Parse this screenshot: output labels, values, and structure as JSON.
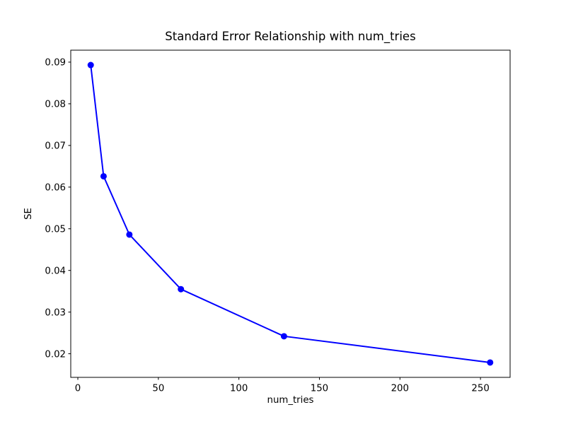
{
  "figure": {
    "background_color": "#ffffff",
    "text_color": "#000000"
  },
  "chart_data": {
    "type": "line",
    "title": "Standard Error Relationship with num_tries",
    "xlabel": "num_tries",
    "ylabel": "SE",
    "grid": false,
    "legend_position": "none",
    "axes_margin": 0.05,
    "series": [
      {
        "name": "SE",
        "color": "#0000ff",
        "marker": "o",
        "x": [
          8,
          16,
          32,
          64,
          128,
          256
        ],
        "y": [
          0.0893,
          0.0626,
          0.0486,
          0.0355,
          0.0242,
          0.0179
        ]
      }
    ],
    "x_ticks": {
      "values": [
        0,
        50,
        100,
        150,
        200,
        250
      ],
      "labels": [
        "0",
        "50",
        "100",
        "150",
        "200",
        "250"
      ]
    },
    "y_ticks": {
      "values": [
        0.02,
        0.03,
        0.04,
        0.05,
        0.06,
        0.07,
        0.08,
        0.09
      ],
      "labels": [
        "0.02",
        "0.03",
        "0.04",
        "0.05",
        "0.06",
        "0.07",
        "0.08",
        "0.09"
      ]
    }
  }
}
